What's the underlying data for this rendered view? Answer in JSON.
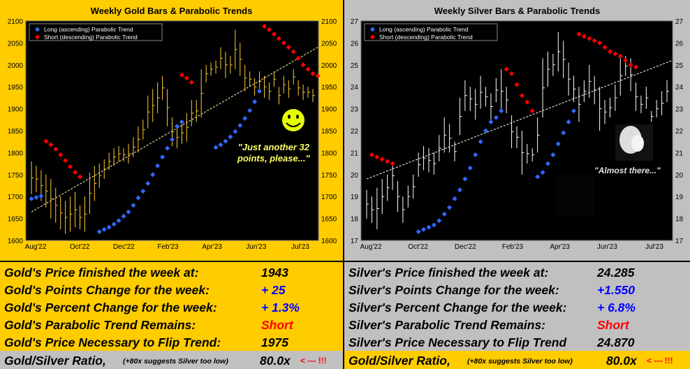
{
  "colors": {
    "gold_bg": "#ffcc00",
    "silver_bg": "#c0c0c0",
    "long_dots": "#3366ff",
    "short_dots": "#ff0000",
    "trend_line": "#ffffcc",
    "up": "#0000ff",
    "down": "#ff0000"
  },
  "gold_chart": {
    "title": "Weekly Gold Bars & Parabolic Trends",
    "legend": [
      "Long (ascending) Parabolic Trend",
      "Short (descending) Parabolic Trend"
    ],
    "annotation_line1": "\"Just another 32",
    "annotation_line2": "points, please...\"",
    "smiley_icon": "smiley-face-icon"
  },
  "silver_chart": {
    "title": "Weekly Silver Bars & Parabolic Trends",
    "legend": [
      "Long (ascending) Parabolic Trend",
      "Short (descending) Parabolic Trend"
    ],
    "annotation": "\"Almost there...\"",
    "portrait_icon": "woman-portrait-icon"
  },
  "chart_data": [
    {
      "type": "ohlc",
      "title": "Weekly Gold Bars & Parabolic Trends",
      "x_ticks": [
        "Aug'22",
        "Oct'22",
        "Dec'22",
        "Feb'23",
        "Apr'23",
        "Jun'23",
        "Jul'23"
      ],
      "y_ticks": [
        1600,
        1650,
        1700,
        1750,
        1800,
        1850,
        1900,
        1950,
        2000,
        2050,
        2100
      ],
      "ylim": [
        1600,
        2100
      ],
      "series_names": [
        "Long (ascending) Parabolic Trend",
        "Short (descending) Parabolic Trend"
      ],
      "bars_hl": [
        [
          1780,
          1705
        ],
        [
          1770,
          1710
        ],
        [
          1760,
          1690
        ],
        [
          1750,
          1675
        ],
        [
          1740,
          1650
        ],
        [
          1720,
          1640
        ],
        [
          1700,
          1625
        ],
        [
          1690,
          1615
        ],
        [
          1700,
          1620
        ],
        [
          1710,
          1630
        ],
        [
          1680,
          1625
        ],
        [
          1700,
          1620
        ],
        [
          1755,
          1660
        ],
        [
          1770,
          1690
        ],
        [
          1775,
          1720
        ],
        [
          1785,
          1740
        ],
        [
          1800,
          1760
        ],
        [
          1810,
          1770
        ],
        [
          1815,
          1780
        ],
        [
          1810,
          1780
        ],
        [
          1820,
          1775
        ],
        [
          1835,
          1790
        ],
        [
          1860,
          1800
        ],
        [
          1875,
          1830
        ],
        [
          1930,
          1855
        ],
        [
          1945,
          1870
        ],
        [
          1960,
          1890
        ],
        [
          1975,
          1920
        ],
        [
          1945,
          1860
        ],
        [
          1880,
          1815
        ],
        [
          1860,
          1810
        ],
        [
          1870,
          1820
        ],
        [
          1890,
          1825
        ],
        [
          1920,
          1860
        ],
        [
          1920,
          1870
        ],
        [
          1990,
          1880
        ],
        [
          2000,
          1960
        ],
        [
          2005,
          1975
        ],
        [
          2010,
          1980
        ],
        [
          2040,
          1990
        ],
        [
          2030,
          1970
        ],
        [
          2020,
          1980
        ],
        [
          2080,
          1990
        ],
        [
          2050,
          1975
        ],
        [
          2000,
          1940
        ],
        [
          1985,
          1950
        ],
        [
          1970,
          1930
        ],
        [
          1985,
          1940
        ],
        [
          1975,
          1925
        ],
        [
          1960,
          1920
        ],
        [
          1985,
          1950
        ],
        [
          1950,
          1910
        ],
        [
          1975,
          1935
        ],
        [
          1965,
          1925
        ],
        [
          1990,
          1955
        ],
        [
          1965,
          1930
        ],
        [
          1955,
          1920
        ],
        [
          1950,
          1925
        ],
        [
          1945,
          1915
        ]
      ],
      "long_dots": [
        [
          0,
          1695
        ],
        [
          1,
          1698
        ],
        [
          2,
          1701
        ],
        [
          14,
          1620
        ],
        [
          15,
          1625
        ],
        [
          16,
          1630
        ],
        [
          17,
          1637
        ],
        [
          18,
          1645
        ],
        [
          19,
          1655
        ],
        [
          20,
          1665
        ],
        [
          21,
          1680
        ],
        [
          22,
          1697
        ],
        [
          23,
          1712
        ],
        [
          24,
          1730
        ],
        [
          25,
          1750
        ],
        [
          26,
          1770
        ],
        [
          27,
          1790
        ],
        [
          28,
          1810
        ],
        [
          29,
          1830
        ],
        [
          30,
          1860
        ],
        [
          31,
          1870
        ],
        [
          38,
          1812
        ],
        [
          39,
          1818
        ],
        [
          40,
          1826
        ],
        [
          41,
          1836
        ],
        [
          42,
          1848
        ],
        [
          43,
          1862
        ],
        [
          44,
          1878
        ],
        [
          45,
          1896
        ],
        [
          46,
          1916
        ],
        [
          47,
          1940
        ]
      ],
      "short_dots": [
        [
          3,
          1826
        ],
        [
          4,
          1818
        ],
        [
          5,
          1808
        ],
        [
          6,
          1795
        ],
        [
          7,
          1782
        ],
        [
          8,
          1768
        ],
        [
          9,
          1755
        ],
        [
          10,
          1745
        ],
        [
          31,
          1977
        ],
        [
          32,
          1970
        ],
        [
          33,
          1960
        ],
        [
          48,
          2088
        ],
        [
          49,
          2080
        ],
        [
          50,
          2070
        ],
        [
          51,
          2060
        ],
        [
          52,
          2050
        ],
        [
          53,
          2040
        ],
        [
          54,
          2030
        ],
        [
          55,
          2015
        ],
        [
          56,
          2000
        ],
        [
          57,
          1990
        ],
        [
          58,
          1980
        ],
        [
          59,
          1975
        ]
      ],
      "trend_line": [
        [
          1665,
          0
        ],
        [
          2040,
          59
        ]
      ]
    },
    {
      "type": "ohlc",
      "title": "Weekly Silver Bars & Parabolic Trends",
      "x_ticks": [
        "Aug'22",
        "Oct'22",
        "Dec'22",
        "Feb'23",
        "Apr'23",
        "Jun'23",
        "Jul'23"
      ],
      "y_ticks": [
        17,
        18,
        19,
        20,
        21,
        22,
        23,
        24,
        25,
        26,
        27
      ],
      "ylim": [
        17,
        27
      ],
      "series_names": [
        "Long (ascending) Parabolic Trend",
        "Short (descending) Parabolic Trend"
      ],
      "bars_hl": [
        [
          19.3,
          18.0
        ],
        [
          19.0,
          17.8
        ],
        [
          19.4,
          17.5
        ],
        [
          19.8,
          18.2
        ],
        [
          20.0,
          18.8
        ],
        [
          20.6,
          19.3
        ],
        [
          19.7,
          18.3
        ],
        [
          19.0,
          17.8
        ],
        [
          19.5,
          18.5
        ],
        [
          20.0,
          18.9
        ],
        [
          21.0,
          19.9
        ],
        [
          21.3,
          20.2
        ],
        [
          21.2,
          20.1
        ],
        [
          21.0,
          20.0
        ],
        [
          21.8,
          20.6
        ],
        [
          22.6,
          21.0
        ],
        [
          22.3,
          21.0
        ],
        [
          21.5,
          20.6
        ],
        [
          23.5,
          21.8
        ],
        [
          24.3,
          22.9
        ],
        [
          24.0,
          22.9
        ],
        [
          23.9,
          22.5
        ],
        [
          24.5,
          23.0
        ],
        [
          24.0,
          23.1
        ],
        [
          23.7,
          22.5
        ],
        [
          24.4,
          23.3
        ],
        [
          24.8,
          22.8
        ],
        [
          24.0,
          22.8
        ],
        [
          22.7,
          21.2
        ],
        [
          22.2,
          21.2
        ],
        [
          22.0,
          20.0
        ],
        [
          21.4,
          20.5
        ],
        [
          21.2,
          20.6
        ],
        [
          22.6,
          21.0
        ],
        [
          25.3,
          22.6
        ],
        [
          25.6,
          24.0
        ],
        [
          25.5,
          24.5
        ],
        [
          26.5,
          24.7
        ],
        [
          26.1,
          24.4
        ],
        [
          25.1,
          23.6
        ],
        [
          24.5,
          23.3
        ],
        [
          24.0,
          22.4
        ],
        [
          24.3,
          23.3
        ],
        [
          25.0,
          23.5
        ],
        [
          24.5,
          23.2
        ],
        [
          24.0,
          22.0
        ],
        [
          23.4,
          22.3
        ],
        [
          23.5,
          22.6
        ],
        [
          24.1,
          22.9
        ],
        [
          25.4,
          23.6
        ],
        [
          25.4,
          24.5
        ],
        [
          25.3,
          23.8
        ],
        [
          24.2,
          22.9
        ],
        [
          23.6,
          22.8
        ],
        [
          24.0,
          23.0
        ],
        [
          22.9,
          22.4
        ],
        [
          23.4,
          22.6
        ],
        [
          23.8,
          22.7
        ],
        [
          24.3,
          23.3
        ]
      ],
      "long_dots": [
        [
          10,
          17.4
        ],
        [
          11,
          17.5
        ],
        [
          12,
          17.6
        ],
        [
          13,
          17.7
        ],
        [
          14,
          17.9
        ],
        [
          15,
          18.2
        ],
        [
          16,
          18.5
        ],
        [
          17,
          18.9
        ],
        [
          18,
          19.3
        ],
        [
          19,
          19.8
        ],
        [
          20,
          20.3
        ],
        [
          21,
          20.9
        ],
        [
          22,
          21.5
        ],
        [
          23,
          22.0
        ],
        [
          24,
          22.4
        ],
        [
          25,
          22.6
        ],
        [
          26,
          22.9
        ],
        [
          33,
          19.9
        ],
        [
          34,
          20.1
        ],
        [
          35,
          20.5
        ],
        [
          36,
          20.9
        ],
        [
          37,
          21.4
        ],
        [
          38,
          21.9
        ],
        [
          39,
          22.4
        ],
        [
          40,
          22.9
        ]
      ],
      "short_dots": [
        [
          1,
          20.9
        ],
        [
          2,
          20.8
        ],
        [
          3,
          20.7
        ],
        [
          4,
          20.6
        ],
        [
          5,
          20.5
        ],
        [
          27,
          24.8
        ],
        [
          28,
          24.6
        ],
        [
          29,
          24.1
        ],
        [
          30,
          23.6
        ],
        [
          31,
          23.3
        ],
        [
          32,
          22.9
        ],
        [
          41,
          26.4
        ],
        [
          42,
          26.3
        ],
        [
          43,
          26.2
        ],
        [
          44,
          26.1
        ],
        [
          45,
          26.0
        ],
        [
          46,
          25.8
        ],
        [
          47,
          25.6
        ],
        [
          48,
          25.5
        ],
        [
          49,
          25.4
        ],
        [
          50,
          25.2
        ],
        [
          51,
          25.0
        ],
        [
          52,
          24.9
        ]
      ],
      "trend_line": [
        [
          19.8,
          0
        ],
        [
          25.2,
          59
        ]
      ]
    }
  ],
  "gold_stats": [
    {
      "label": "Gold's Price finished the week at:",
      "value": "1943",
      "color": "#000000"
    },
    {
      "label": "Gold's Points Change for the week:",
      "value": "+ 25",
      "color": "#0000ff"
    },
    {
      "label": "Gold's Percent Change for the week:",
      "value": "+ 1.3%",
      "color": "#0000ff"
    },
    {
      "label": "Gold's Parabolic Trend Remains:",
      "value": "Short",
      "color": "#ff0000"
    },
    {
      "label": "Gold's Price Necessary to Flip Trend:",
      "value": "1975",
      "color": "#000000"
    }
  ],
  "silver_stats": [
    {
      "label": "Silver's Price finished the week at:",
      "value": "24.285",
      "color": "#000000"
    },
    {
      "label": "Silver's Points Change for the week:",
      "value": "+1.550",
      "color": "#0000ff"
    },
    {
      "label": "Silver's Percent Change for the week:",
      "value": "+ 6.8%",
      "color": "#0000ff"
    },
    {
      "label": "Silver's Parabolic Trend Remains:",
      "value": "Short",
      "color": "#ff0000"
    },
    {
      "label": "Silver's Price Necessary to Flip Trend",
      "value": "24.870",
      "color": "#000000"
    }
  ],
  "ratio": {
    "gold_side": {
      "label": "Gold/Silver Ratio,",
      "note": "(+80x suggests Silver too low)",
      "value": "80.0x",
      "arrow": "< --- !!!"
    },
    "silver_side": {
      "label": "Gold/Silver Ratio,",
      "note": "(+80x suggests Silver too low)",
      "value": "80.0x",
      "arrow": "< --- !!!"
    }
  }
}
